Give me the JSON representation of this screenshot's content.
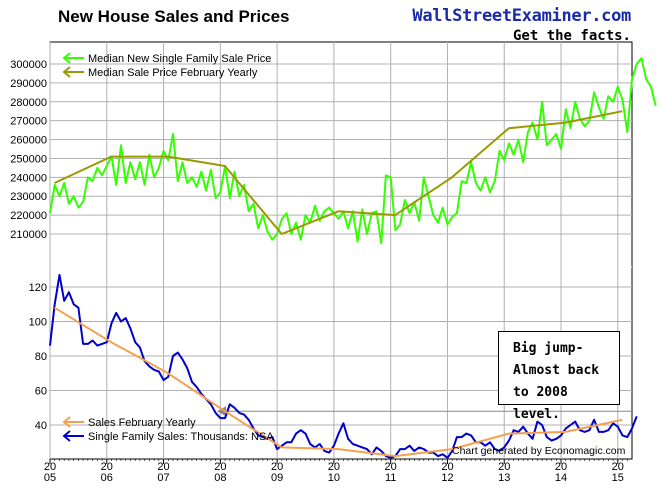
{
  "title": "New House Sales and Prices",
  "brand": {
    "name": "WallStreetExaminer.com",
    "tagline": "Get the facts."
  },
  "callout": {
    "lines": [
      "Big jump-",
      "Almost back",
      "to 2008 level."
    ]
  },
  "credit": "Chart generated by Economagic.com",
  "colors": {
    "median_price": "#33ff00",
    "feb_price": "#999900",
    "feb_sales": "#f5a050",
    "sales": "#0000cc",
    "reference_line": "#888888"
  },
  "chart_data": [
    {
      "type": "line",
      "title": "",
      "ylim": [
        200000,
        305000
      ],
      "yticks": [
        "210000",
        "220000",
        "230000",
        "240000",
        "250000",
        "260000",
        "270000",
        "280000",
        "290000",
        "300000"
      ],
      "legend": [
        "Median New Single Family Sale Price",
        "Median Sale Price February Yearly"
      ],
      "legend_position": "top-left",
      "series": [
        {
          "name": "Median New Single Family Sale Price",
          "color": "#33ff00",
          "x_start": 2005.0,
          "x_step": 0.083333,
          "values": [
            221000,
            236000,
            230000,
            237000,
            226000,
            230000,
            224000,
            227000,
            240000,
            238000,
            245000,
            241000,
            246000,
            251000,
            236000,
            257000,
            237000,
            248000,
            239000,
            248000,
            236000,
            252000,
            240000,
            245000,
            254000,
            249000,
            263000,
            238000,
            248000,
            237000,
            240000,
            235000,
            243000,
            233000,
            244000,
            229000,
            232000,
            246000,
            229000,
            243000,
            230000,
            236000,
            222000,
            226000,
            213000,
            220000,
            211000,
            207000,
            210000,
            218000,
            221000,
            210000,
            216000,
            207000,
            220000,
            216000,
            225000,
            217000,
            222000,
            224000,
            221000,
            218000,
            222000,
            213000,
            222000,
            206000,
            223000,
            210000,
            221000,
            222000,
            205000,
            241000,
            240000,
            212000,
            215000,
            228000,
            221000,
            227000,
            217000,
            240000,
            230000,
            220000,
            216000,
            224000,
            215000,
            219000,
            221000,
            238000,
            237000,
            248000,
            237000,
            233000,
            240000,
            232000,
            238000,
            254000,
            249000,
            258000,
            252000,
            260000,
            248000,
            264000,
            269000,
            260000,
            280000,
            257000,
            260000,
            263000,
            255000,
            276000,
            266000,
            280000,
            271000,
            267000,
            270000,
            285000,
            277000,
            271000,
            283000,
            280000,
            288000,
            281000,
            264000,
            292000,
            300000,
            303000,
            292000,
            288000,
            278000
          ]
        },
        {
          "name": "Median Sale Price February Yearly",
          "color": "#999900",
          "x": [
            2005.08,
            2006.08,
            2007.08,
            2008.08,
            2009.08,
            2010.08,
            2011.08,
            2012.08,
            2013.08,
            2014.08,
            2015.08
          ],
          "values": [
            237000,
            251000,
            251000,
            246000,
            210000,
            222000,
            220000,
            240000,
            266000,
            269000,
            275000
          ]
        }
      ]
    },
    {
      "type": "line",
      "title": "",
      "ylim": [
        20,
        130
      ],
      "yticks": [
        "40",
        "60",
        "80",
        "100",
        "120"
      ],
      "legend": [
        "Sales February Yearly",
        "Single Family Sales: Thousands: NSA"
      ],
      "legend_position": "bottom-left",
      "xlim": [
        2005,
        2015.25
      ],
      "xticks": [
        [
          "20",
          "05"
        ],
        [
          "20",
          "06"
        ],
        [
          "20",
          "07"
        ],
        [
          "20",
          "08"
        ],
        [
          "20",
          "09"
        ],
        [
          "20",
          "10"
        ],
        [
          "20",
          "11"
        ],
        [
          "20",
          "12"
        ],
        [
          "20",
          "13"
        ],
        [
          "20",
          "14"
        ],
        [
          "20",
          "15"
        ]
      ],
      "reference_level": 48,
      "series": [
        {
          "name": "Sales February Yearly",
          "color": "#f5a050",
          "x": [
            2005.08,
            2006.08,
            2007.08,
            2008.08,
            2009.08,
            2010.08,
            2011.08,
            2012.08,
            2013.08,
            2014.08,
            2015.08
          ],
          "values": [
            108,
            88,
            70,
            48,
            27,
            26,
            22,
            26,
            35,
            36,
            43
          ]
        },
        {
          "name": "Single Family Sales: Thousands: NSA",
          "color": "#0000cc",
          "x_start": 2005.0,
          "x_step": 0.083333,
          "values": [
            86,
            110,
            127,
            112,
            117,
            110,
            108,
            87,
            87,
            89,
            86,
            87,
            88,
            99,
            105,
            100,
            102,
            96,
            88,
            85,
            77,
            74,
            72,
            71,
            66,
            68,
            80,
            82,
            78,
            73,
            65,
            62,
            58,
            55,
            52,
            47,
            44,
            44,
            52,
            50,
            47,
            46,
            43,
            38,
            34,
            33,
            32,
            33,
            26,
            28,
            30,
            30,
            35,
            37,
            35,
            29,
            27,
            29,
            25,
            24,
            28,
            35,
            41,
            32,
            29,
            28,
            27,
            26,
            23,
            27,
            25,
            22,
            21,
            22,
            26,
            26,
            28,
            25,
            27,
            26,
            24,
            24,
            22,
            23,
            21,
            25,
            33,
            33,
            35,
            34,
            30,
            30,
            28,
            30,
            26,
            25,
            27,
            31,
            37,
            36,
            39,
            35,
            32,
            42,
            40,
            33,
            31,
            32,
            34,
            38,
            40,
            42,
            37,
            36,
            37,
            43,
            36,
            36,
            37,
            41,
            39,
            34,
            33,
            38,
            45
          ]
        }
      ]
    }
  ]
}
